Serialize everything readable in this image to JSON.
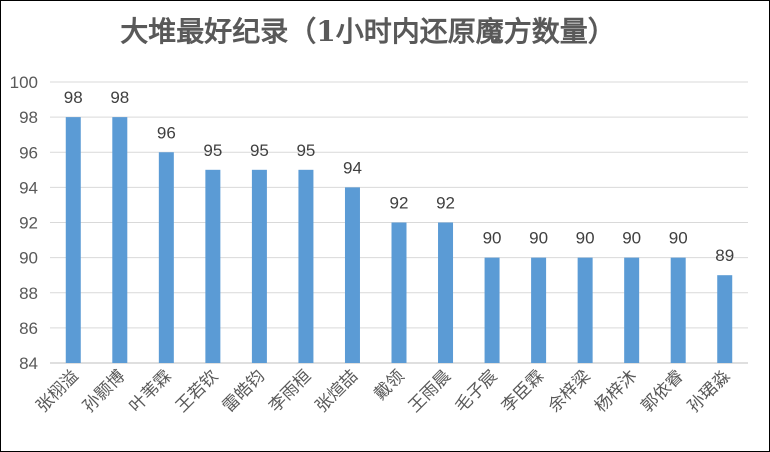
{
  "chart_data": {
    "type": "bar",
    "title": "大堆最好纪录（1小时内还原魔方数量）",
    "xlabel": "",
    "ylabel": "",
    "ylim": [
      84,
      100
    ],
    "yticks": [
      84,
      86,
      88,
      90,
      92,
      94,
      96,
      98,
      100
    ],
    "grid": true,
    "legend": "none",
    "bar_color": "#5B9BD5",
    "categories": [
      "张栩溢",
      "孙颢博",
      "叶苇霖",
      "王若钦",
      "雷皓钧",
      "李雨桓",
      "张煊喆",
      "戴领",
      "王雨晨",
      "毛子宸",
      "李臣霖",
      "余梓梁",
      "杨梓沐",
      "郭依睿",
      "孙珺淼"
    ],
    "values": [
      98,
      98,
      96,
      95,
      95,
      95,
      94,
      92,
      92,
      90,
      90,
      90,
      90,
      90,
      89
    ]
  }
}
